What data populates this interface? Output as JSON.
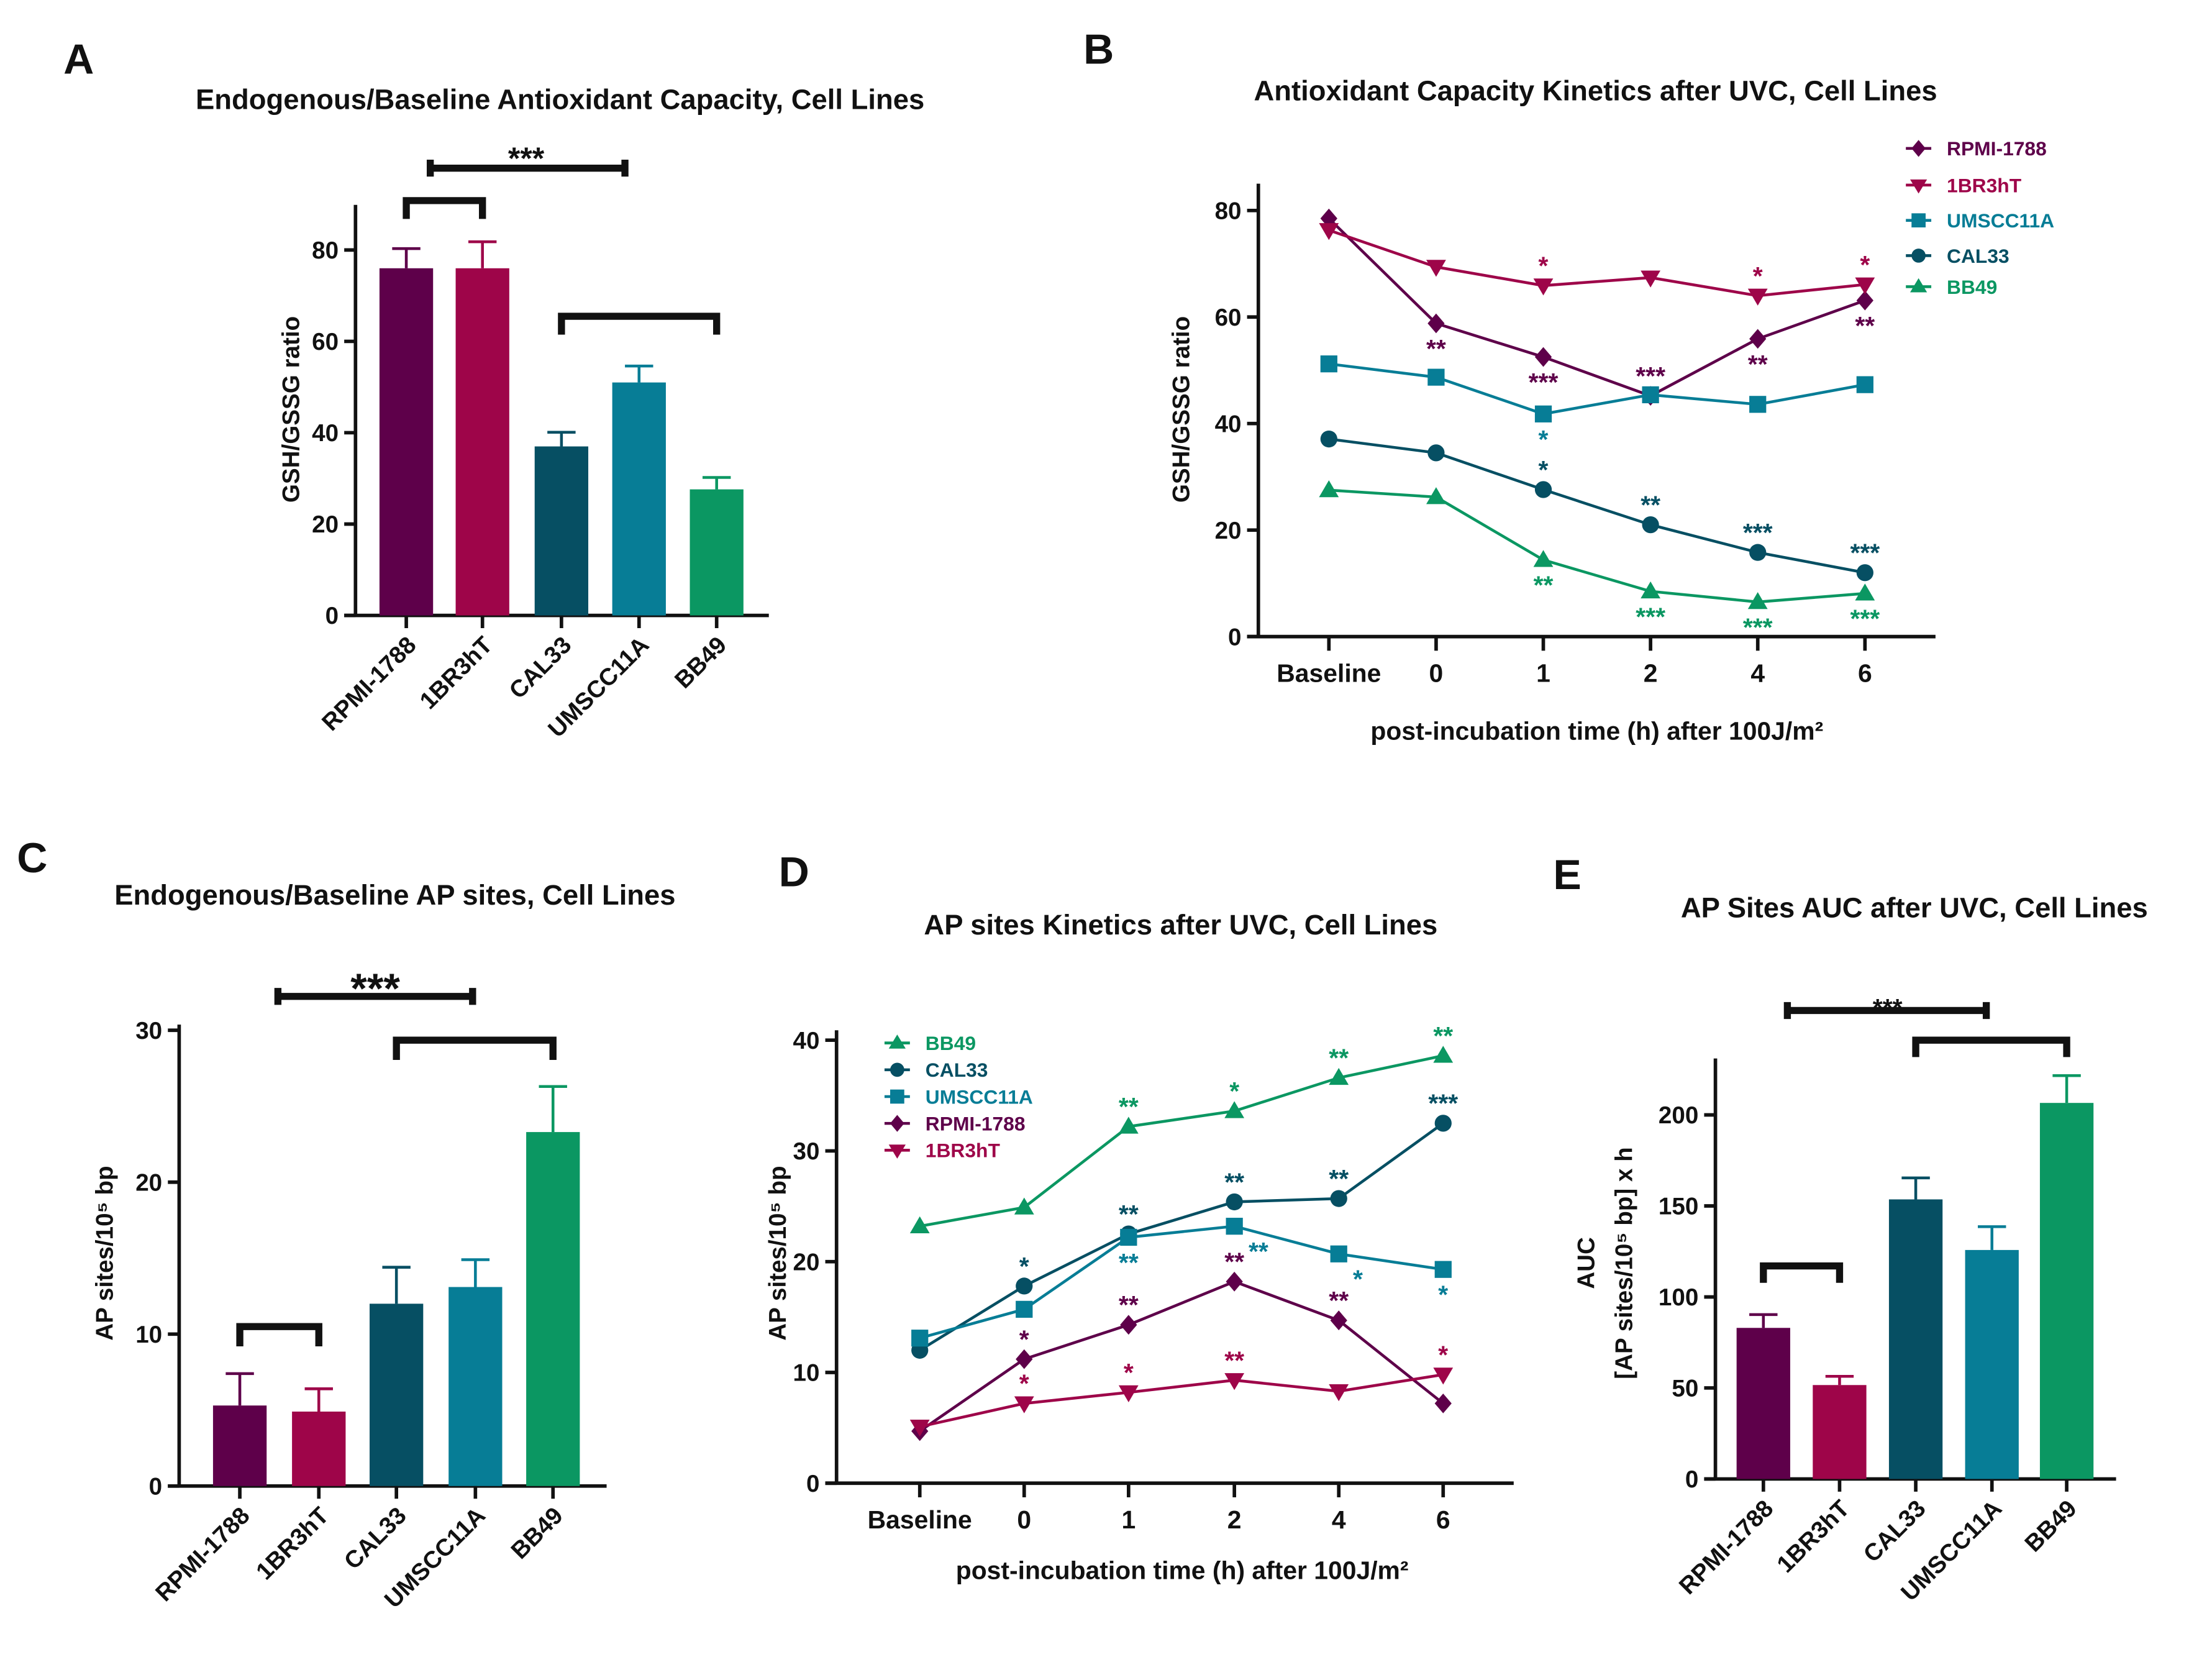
{
  "colors": {
    "RPMI-1788": "#5e004a",
    "1BR3hT": "#9e0549",
    "CAL33": "#064f63",
    "UMSCC11A": "#077d96",
    "BB49": "#0b9762",
    "axis": "#111111"
  },
  "markers": {
    "RPMI-1788": "diamond",
    "1BR3hT": "triangle-down",
    "UMSCC11A": "square",
    "CAL33": "circle",
    "BB49": "triangle-up"
  },
  "chart_data": [
    {
      "panel": "A",
      "type": "bar",
      "title": "Endogenous/Baseline Antioxidant Capacity, Cell  Lines",
      "ylabel": "GSH/GSSG ratio",
      "xlabel": "",
      "ylim": [
        0,
        90
      ],
      "yticks": [
        0,
        20,
        40,
        60,
        80
      ],
      "categories": [
        "RPMI-1788",
        "1BR3hT",
        "CAL33",
        "UMSCC11A",
        "BB49"
      ],
      "values": [
        76,
        76,
        37,
        51,
        27.6
      ],
      "error_upper": [
        80.3,
        81.8,
        40.1,
        54.6,
        30.2
      ],
      "group_brackets": [
        [
          "RPMI-1788",
          "1BR3hT"
        ],
        [
          "CAL33",
          "BB49"
        ]
      ],
      "between_groups_significance": "***",
      "grid": false
    },
    {
      "panel": "B",
      "type": "line",
      "title": "Antioxidant Capacity Kinetics after UVC, Cell Lines",
      "ylabel": "GSH/GSSG ratio",
      "xlabel": "post-incubation time (h) after 100J/m²",
      "x": [
        "Baseline",
        "0",
        "1",
        "2",
        "4",
        "6"
      ],
      "ylim": [
        0,
        85
      ],
      "yticks": [
        0,
        20,
        40,
        60,
        80
      ],
      "legend_position": "top-right",
      "grid": false,
      "series": [
        {
          "name": "RPMI-1788",
          "values": [
            78.5,
            58.8,
            52.5,
            45.2,
            55.9,
            63.1
          ],
          "sig": [
            "",
            "**",
            "***",
            "***",
            "**",
            "**"
          ],
          "sig_pos": [
            "",
            "below",
            "below",
            "above",
            "below",
            "below"
          ]
        },
        {
          "name": "1BR3hT",
          "values": [
            76.3,
            69.4,
            65.9,
            67.4,
            64,
            66.1
          ],
          "sig": [
            "",
            "",
            "*",
            "",
            "*",
            "*"
          ],
          "sig_pos": [
            "",
            "",
            "above",
            "",
            "above",
            "above"
          ]
        },
        {
          "name": "UMSCC11A",
          "values": [
            51.2,
            48.7,
            41.8,
            45.4,
            43.6,
            47.3
          ],
          "sig": [
            "",
            "",
            "*",
            "",
            "",
            ""
          ],
          "sig_pos": [
            "",
            "",
            "below",
            "",
            "",
            ""
          ]
        },
        {
          "name": "CAL33",
          "values": [
            37.1,
            34.5,
            27.6,
            21,
            15.8,
            12
          ],
          "sig": [
            "",
            "",
            "*",
            "**",
            "***",
            "***"
          ],
          "sig_pos": [
            "",
            "",
            "above",
            "above",
            "above",
            "above"
          ]
        },
        {
          "name": "BB49",
          "values": [
            27.5,
            26.2,
            14.4,
            8.5,
            6.5,
            8.1
          ],
          "sig": [
            "",
            "",
            "**",
            "***",
            "***",
            "***"
          ],
          "sig_pos": [
            "",
            "",
            "below",
            "below",
            "below",
            "below"
          ]
        }
      ]
    },
    {
      "panel": "C",
      "type": "bar",
      "title": "Endogenous/Baseline AP sites, Cell Lines",
      "ylabel": "AP sites/10⁵ bp",
      "xlabel": "",
      "ylim": [
        0,
        30
      ],
      "yticks": [
        0,
        10,
        20,
        30
      ],
      "categories": [
        "RPMI-1788",
        "1BR3hT",
        "CAL33",
        "UMSCC11A",
        "BB49"
      ],
      "values": [
        5.3,
        4.9,
        12.0,
        13.1,
        23.3
      ],
      "error_upper": [
        7.4,
        6.4,
        14.4,
        14.9,
        26.3
      ],
      "group_brackets": [
        [
          "RPMI-1788",
          "1BR3hT"
        ],
        [
          "CAL33",
          "BB49"
        ]
      ],
      "between_groups_significance": "***",
      "grid": false
    },
    {
      "panel": "D",
      "type": "line",
      "title": "AP sites Kinetics after UVC, Cell Lines",
      "ylabel": "AP sites/10⁵ bp",
      "xlabel": "post-incubation time (h) after 100J/m²",
      "x": [
        "Baseline",
        "0",
        "1",
        "2",
        "4",
        "6"
      ],
      "ylim": [
        0,
        40
      ],
      "yticks": [
        0,
        10,
        20,
        30,
        40
      ],
      "legend_position": "top-left",
      "grid": false,
      "series": [
        {
          "name": "BB49",
          "values": [
            23.2,
            24.9,
            32.2,
            33.6,
            36.6,
            38.6
          ],
          "sig": [
            "",
            "",
            "**",
            "*",
            "**",
            "**"
          ],
          "sig_pos": [
            "",
            "",
            "above",
            "above",
            "above",
            "above"
          ]
        },
        {
          "name": "CAL33",
          "values": [
            12,
            17.8,
            22.5,
            25.4,
            25.7,
            32.5
          ],
          "sig": [
            "",
            "*",
            "**",
            "**",
            "**",
            "***"
          ],
          "sig_pos": [
            "",
            "above",
            "above",
            "above",
            "above",
            "above"
          ]
        },
        {
          "name": "UMSCC11A",
          "values": [
            13.1,
            15.7,
            22.2,
            23.2,
            20.7,
            19.3
          ],
          "sig": [
            "",
            "",
            "**",
            "**",
            "*",
            "*"
          ],
          "sig_pos": [
            "",
            "",
            "below",
            "below",
            "below",
            "below"
          ]
        },
        {
          "name": "RPMI-1788",
          "values": [
            4.7,
            11.2,
            14.3,
            18.2,
            14.7,
            7.2
          ],
          "sig": [
            "",
            "*",
            "**",
            "**",
            "**",
            ""
          ],
          "sig_pos": [
            "",
            "above",
            "above",
            "above",
            "above",
            ""
          ]
        },
        {
          "name": "1BR3hT",
          "values": [
            5.1,
            7.2,
            8.2,
            9.3,
            8.3,
            9.8
          ],
          "sig": [
            "",
            "*",
            "*",
            "**",
            "",
            "*"
          ],
          "sig_pos": [
            "",
            "above",
            "above",
            "above",
            "",
            "above"
          ]
        }
      ]
    },
    {
      "panel": "E",
      "type": "bar",
      "title": "AP Sites AUC after UVC, Cell Lines",
      "ylabel": "AUC",
      "ylabel2": "[AP sites/10⁵ bp] x h",
      "xlabel": "",
      "ylim": [
        0,
        230
      ],
      "yticks": [
        0,
        50,
        100,
        150,
        200
      ],
      "categories": [
        "RPMI-1788",
        "1BR3hT",
        "CAL33",
        "UMSCC11A",
        "BB49"
      ],
      "values": [
        83,
        51.6,
        153.6,
        125.8,
        206.6
      ],
      "error_upper": [
        90.3,
        56.4,
        165.4,
        138.6,
        221.6
      ],
      "group_brackets": [
        [
          "RPMI-1788",
          "1BR3hT"
        ],
        [
          "CAL33",
          "BB49"
        ]
      ],
      "between_groups_significance": "***",
      "grid": false
    }
  ]
}
